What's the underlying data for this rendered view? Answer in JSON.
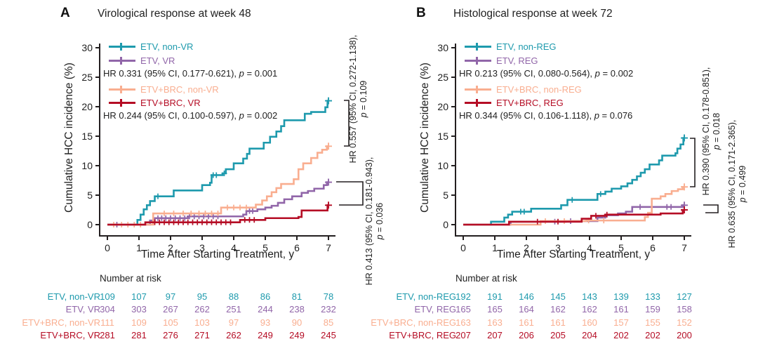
{
  "figure": {
    "text_color": "#1f1f1f",
    "axis_color": "#231f20",
    "bracket_color": "#231f20",
    "background": "#ffffff"
  },
  "chart_data": [
    {
      "type": "line",
      "letter": "A",
      "title": "Virological response at week 48",
      "xlabel": "Time After Starting Treatment, y",
      "ylabel": "Cumulative HCC incidence (%)",
      "xlim": [
        0,
        7
      ],
      "ylim": [
        0,
        30
      ],
      "xticks": [
        0,
        1,
        2,
        3,
        4,
        5,
        6,
        7
      ],
      "yticks": [
        0,
        5,
        10,
        15,
        20,
        25,
        30
      ],
      "grid": false,
      "legend_position": "top-left-inside",
      "series": [
        {
          "name": "ETV, non-VR",
          "color": "#1e9aad",
          "end_cross": true,
          "points": [
            [
              0,
              0
            ],
            [
              0.95,
              0.8
            ],
            [
              1.05,
              1.7
            ],
            [
              1.15,
              2.6
            ],
            [
              1.25,
              3.3
            ],
            [
              1.35,
              4.0
            ],
            [
              1.5,
              4.8
            ],
            [
              2.1,
              5.8
            ],
            [
              3.0,
              6.7
            ],
            [
              3.25,
              7.1
            ],
            [
              3.3,
              8.4
            ],
            [
              3.65,
              8.7
            ],
            [
              3.75,
              9.4
            ],
            [
              4.0,
              10.4
            ],
            [
              4.3,
              11.2
            ],
            [
              4.42,
              12.0
            ],
            [
              4.5,
              12.9
            ],
            [
              4.95,
              13.9
            ],
            [
              5.15,
              14.9
            ],
            [
              5.35,
              15.8
            ],
            [
              5.5,
              16.7
            ],
            [
              5.6,
              17.7
            ],
            [
              6.25,
              18.8
            ],
            [
              6.45,
              19.1
            ],
            [
              6.9,
              19.9
            ],
            [
              6.97,
              21.0
            ]
          ],
          "censors": [
            1.6,
            3.35,
            3.45,
            3.7
          ]
        },
        {
          "name": "ETV, VR",
          "color": "#9166a9",
          "end_cross": true,
          "points": [
            [
              0,
              0
            ],
            [
              1.35,
              0.7
            ],
            [
              1.5,
              1.1
            ],
            [
              2.55,
              1.4
            ],
            [
              4.3,
              1.7
            ],
            [
              4.4,
              2.3
            ],
            [
              4.75,
              2.6
            ],
            [
              5.0,
              2.9
            ],
            [
              5.2,
              3.2
            ],
            [
              5.4,
              3.7
            ],
            [
              5.6,
              4.3
            ],
            [
              5.85,
              4.8
            ],
            [
              6.15,
              5.4
            ],
            [
              6.35,
              5.7
            ],
            [
              6.55,
              6.1
            ],
            [
              6.85,
              6.7
            ],
            [
              6.95,
              7.2
            ]
          ],
          "censors": [
            0.3,
            1.6,
            1.72,
            1.85,
            2.0,
            2.15,
            2.3,
            2.45,
            2.6,
            2.75,
            2.9,
            3.05,
            3.2,
            3.35,
            3.5,
            4.5,
            4.6
          ]
        },
        {
          "name": "ETV+BRC, non-VR",
          "color": "#f9ae90",
          "end_cross": true,
          "points": [
            [
              0,
              0
            ],
            [
              1.45,
              1.9
            ],
            [
              3.6,
              2.9
            ],
            [
              4.7,
              3.4
            ],
            [
              4.9,
              4.1
            ],
            [
              5.05,
              4.8
            ],
            [
              5.2,
              5.5
            ],
            [
              5.35,
              6.2
            ],
            [
              5.5,
              6.9
            ],
            [
              5.9,
              7.7
            ],
            [
              6.05,
              9.4
            ],
            [
              6.2,
              10.4
            ],
            [
              6.45,
              11.3
            ],
            [
              6.65,
              12.2
            ],
            [
              6.8,
              12.7
            ],
            [
              6.95,
              13.3
            ]
          ],
          "censors": [
            0.2,
            0.45,
            0.65,
            0.85,
            1.05,
            1.8,
            2.1,
            2.4,
            2.65,
            2.9,
            3.1,
            3.3,
            3.5,
            3.8,
            4.0,
            4.2,
            4.4
          ]
        },
        {
          "name": "ETV+BRC, VR",
          "color": "#b50d25",
          "end_cross": true,
          "points": [
            [
              0,
              0
            ],
            [
              1.2,
              0.4
            ],
            [
              4.2,
              0.8
            ],
            [
              5.0,
              1.1
            ],
            [
              6.05,
              1.3
            ],
            [
              6.15,
              2.4
            ],
            [
              6.97,
              3.3
            ]
          ],
          "censors": [
            1.5,
            1.65,
            1.8,
            1.95,
            2.1,
            2.25,
            2.4,
            2.55,
            2.7,
            2.85,
            3.0,
            3.15,
            3.3,
            3.45,
            3.6,
            3.75,
            3.9,
            4.35,
            4.5,
            4.65
          ]
        }
      ],
      "hr_stats": [
        {
          "hr": "HR 0.331 (95% CI, 0.177-0.621),",
          "p": "p = 0.001"
        },
        {
          "hr": "HR 0.244 (95% CI, 0.100-0.597),",
          "p": "p = 0.002"
        }
      ],
      "bracket_annotations": [
        {
          "hr": "HR 0.557 (95% CI, 0.272-1.138),",
          "p": "p = 0.109"
        },
        {
          "hr": "HR 0.413 (95% CI, 0.181-0.943),",
          "p": "p = 0.036"
        }
      ],
      "risk_table": {
        "heading": "Number at risk",
        "rows": [
          {
            "label": "ETV, non-VR",
            "values": [
              109,
              107,
              97,
              95,
              88,
              86,
              81,
              78
            ]
          },
          {
            "label": "ETV, VR",
            "values": [
              304,
              303,
              267,
              262,
              251,
              244,
              238,
              232
            ]
          },
          {
            "label": "ETV+BRC, non-VR",
            "values": [
              111,
              109,
              105,
              103,
              97,
              93,
              90,
              85
            ]
          },
          {
            "label": "ETV+BRC, VR",
            "values": [
              281,
              281,
              276,
              271,
              262,
              249,
              249,
              245
            ]
          }
        ]
      }
    },
    {
      "type": "line",
      "letter": "B",
      "title": "Histological response at week 72",
      "xlabel": "Time After Starting Treatment, y",
      "ylabel": "Cumulative HCC incidence (%)",
      "xlim": [
        0,
        7
      ],
      "ylim": [
        0,
        30
      ],
      "xticks": [
        0,
        1,
        2,
        3,
        4,
        5,
        6,
        7
      ],
      "yticks": [
        0,
        5,
        10,
        15,
        20,
        25,
        30
      ],
      "grid": false,
      "legend_position": "top-left-inside",
      "series": [
        {
          "name": "ETV, non-REG",
          "color": "#1e9aad",
          "end_cross": true,
          "points": [
            [
              0,
              0
            ],
            [
              0.88,
              0.5
            ],
            [
              1.3,
              1.2
            ],
            [
              1.42,
              1.7
            ],
            [
              1.55,
              2.2
            ],
            [
              2.15,
              2.7
            ],
            [
              3.1,
              3.3
            ],
            [
              3.3,
              4.2
            ],
            [
              4.25,
              5.2
            ],
            [
              4.5,
              5.6
            ],
            [
              4.7,
              6.1
            ],
            [
              5.0,
              6.5
            ],
            [
              5.2,
              7.0
            ],
            [
              5.35,
              7.6
            ],
            [
              5.5,
              8.2
            ],
            [
              5.62,
              8.8
            ],
            [
              5.75,
              9.4
            ],
            [
              5.9,
              10.2
            ],
            [
              6.2,
              10.9
            ],
            [
              6.3,
              11.7
            ],
            [
              6.72,
              12.1
            ],
            [
              6.78,
              12.9
            ],
            [
              6.88,
              13.6
            ],
            [
              6.97,
              14.7
            ]
          ],
          "censors": [
            1.82,
            1.93,
            3.45,
            4.35
          ]
        },
        {
          "name": "ETV, REG",
          "color": "#9166a9",
          "end_cross": true,
          "points": [
            [
              0,
              0
            ],
            [
              1.5,
              0.5
            ],
            [
              3.25,
              0.6
            ],
            [
              4.25,
              1.2
            ],
            [
              4.5,
              1.6
            ],
            [
              4.9,
              1.9
            ],
            [
              5.15,
              2.2
            ],
            [
              5.35,
              3.0
            ],
            [
              6.95,
              3.3
            ]
          ],
          "censors": [
            2.9,
            3.4,
            5.6,
            6.45,
            6.58
          ]
        },
        {
          "name": "ETV+BRC, non-REG",
          "color": "#f9ae90",
          "end_cross": true,
          "points": [
            [
              0,
              0
            ],
            [
              2.45,
              0.6
            ],
            [
              3.9,
              0.7
            ],
            [
              5.75,
              1.3
            ],
            [
              5.85,
              2.0
            ],
            [
              5.97,
              4.4
            ],
            [
              6.25,
              4.8
            ],
            [
              6.4,
              5.2
            ],
            [
              6.6,
              5.7
            ],
            [
              6.8,
              6.0
            ],
            [
              6.95,
              6.4
            ]
          ],
          "censors": [
            2.6,
            3.2,
            3.97,
            4.45
          ]
        },
        {
          "name": "ETV+BRC, REG",
          "color": "#b50d25",
          "end_cross": true,
          "points": [
            [
              0,
              0
            ],
            [
              1.45,
              0.5
            ],
            [
              3.75,
              1.0
            ],
            [
              4.05,
              1.5
            ],
            [
              4.5,
              1.7
            ],
            [
              6.25,
              1.9
            ],
            [
              6.95,
              2.5
            ]
          ],
          "censors": [
            2.35,
            3.0,
            4.2,
            4.55
          ]
        }
      ],
      "hr_stats": [
        {
          "hr": "HR 0.213 (95% CI, 0.080-0.564),",
          "p": "p = 0.002"
        },
        {
          "hr": "HR 0.344 (95% CI, 0.106-1.118),",
          "p": "p = 0.076"
        }
      ],
      "bracket_annotations": [
        {
          "hr": "HR 0.390 (95% CI, 0.178-0.851),",
          "p": "p = 0.018"
        },
        {
          "hr": "HR 0.635 (95% CI, 0.171-2.365),",
          "p": "p = 0.499"
        }
      ],
      "risk_table": {
        "heading": "Number at risk",
        "rows": [
          {
            "label": "ETV, non-REG",
            "values": [
              192,
              191,
              146,
              145,
              143,
              139,
              133,
              127
            ]
          },
          {
            "label": "ETV, REG",
            "values": [
              165,
              165,
              164,
              162,
              162,
              161,
              159,
              158
            ]
          },
          {
            "label": "ETV+BRC, non-REG",
            "values": [
              163,
              163,
              161,
              161,
              160,
              157,
              155,
              152
            ]
          },
          {
            "label": "ETV+BRC, REG",
            "values": [
              207,
              207,
              206,
              205,
              204,
              202,
              202,
              200
            ]
          }
        ]
      }
    }
  ]
}
